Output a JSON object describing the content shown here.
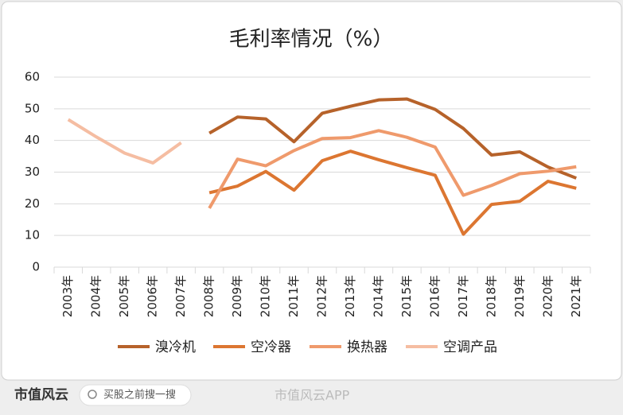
{
  "chart_data": {
    "type": "line",
    "title": "毛利率情况（%）",
    "categories": [
      "2003年",
      "2004年",
      "2005年",
      "2006年",
      "2007年",
      "2008年",
      "2009年",
      "2010年",
      "2011年",
      "2012年",
      "2013年",
      "2014年",
      "2015年",
      "2016年",
      "2017年",
      "2018年",
      "2019年",
      "2020年",
      "2021年"
    ],
    "series": [
      {
        "name": "溴冷机",
        "color": "#b6622a",
        "values": [
          null,
          null,
          null,
          null,
          null,
          42.3,
          47.4,
          46.8,
          39.6,
          48.6,
          50.8,
          52.8,
          53.1,
          49.8,
          43.8,
          35.4,
          36.4,
          31.6,
          28.1
        ]
      },
      {
        "name": "空冷器",
        "color": "#dc7631",
        "values": [
          null,
          null,
          null,
          null,
          null,
          23.5,
          25.6,
          30.2,
          24.3,
          33.6,
          36.6,
          33.9,
          31.4,
          29.0,
          10.4,
          19.8,
          20.8,
          27.1,
          24.9
        ]
      },
      {
        "name": "换热器",
        "color": "#ef9a6c",
        "values": [
          null,
          null,
          null,
          null,
          null,
          18.6,
          34.1,
          32.0,
          36.8,
          40.6,
          40.9,
          43.1,
          41.0,
          37.9,
          22.7,
          25.8,
          29.5,
          30.3,
          31.7
        ]
      },
      {
        "name": "空调产品",
        "color": "#f5bda2",
        "values": [
          46.6,
          41.1,
          36.0,
          32.9,
          39.3,
          null,
          null,
          null,
          null,
          null,
          null,
          null,
          null,
          null,
          null,
          null,
          null,
          null,
          null
        ]
      }
    ],
    "ylim": [
      0,
      60
    ],
    "yticks": [
      0,
      10,
      20,
      30,
      40,
      50,
      60
    ],
    "grid": true,
    "legend": "bottom"
  },
  "footer": {
    "logo": "市值风云",
    "search": "买股之前搜一搜",
    "watermark": "市值风云APP"
  }
}
